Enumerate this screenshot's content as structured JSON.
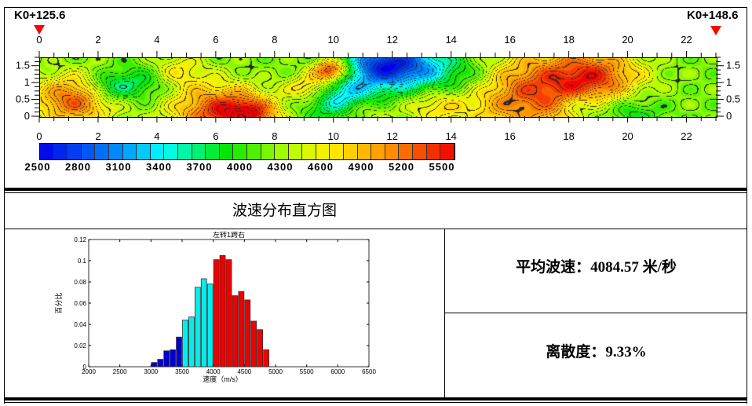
{
  "profile": {
    "start_label": "K0+125.6",
    "end_label": "K0+148.6",
    "x_ticks": [
      "0",
      "2",
      "4",
      "6",
      "8",
      "10",
      "12",
      "14",
      "16",
      "18",
      "20",
      "22"
    ],
    "y_ticks": [
      "1.5",
      "1",
      "0.5",
      "0"
    ],
    "x_range": [
      0,
      23
    ],
    "y_range": [
      0,
      1.75
    ],
    "marker_color": "#ff0000"
  },
  "colorbar": {
    "labels": [
      "2500",
      "2800",
      "3100",
      "3400",
      "3700",
      "4000",
      "4300",
      "4600",
      "4900",
      "5200",
      "5500"
    ],
    "range": [
      2500,
      5500
    ]
  },
  "section_title": "波速分布直方图",
  "stats": {
    "mean_label": "平均波速：4084.57 米/秒",
    "dispersion_label": "离散度：9.33%"
  },
  "chart_data": {
    "type": "bar",
    "title": "左转1跨右",
    "xlabel": "速度（m/s）",
    "ylabel": "百分比",
    "xlim": [
      2000,
      6500
    ],
    "ylim": [
      0,
      0.12
    ],
    "x_ticks": [
      "2000",
      "2500",
      "3000",
      "3500",
      "4000",
      "4500",
      "5000",
      "5500",
      "6000",
      "6500"
    ],
    "y_ticks": [
      "0",
      "0.02",
      "0.04",
      "0.06",
      "0.08",
      "0.1",
      "0.12"
    ],
    "bin_width": 100,
    "x": [
      3050,
      3150,
      3250,
      3350,
      3450,
      3550,
      3650,
      3750,
      3850,
      3950,
      4050,
      4150,
      4250,
      4350,
      4450,
      4550,
      4650,
      4750,
      4850
    ],
    "values": [
      0.004,
      0.007,
      0.015,
      0.016,
      0.028,
      0.044,
      0.047,
      0.075,
      0.083,
      0.078,
      0.101,
      0.105,
      0.101,
      0.067,
      0.071,
      0.063,
      0.043,
      0.035,
      0.016
    ],
    "colors": {
      "low": "#0000cc",
      "mid": "#00eeee",
      "high": "#ee0000"
    }
  }
}
